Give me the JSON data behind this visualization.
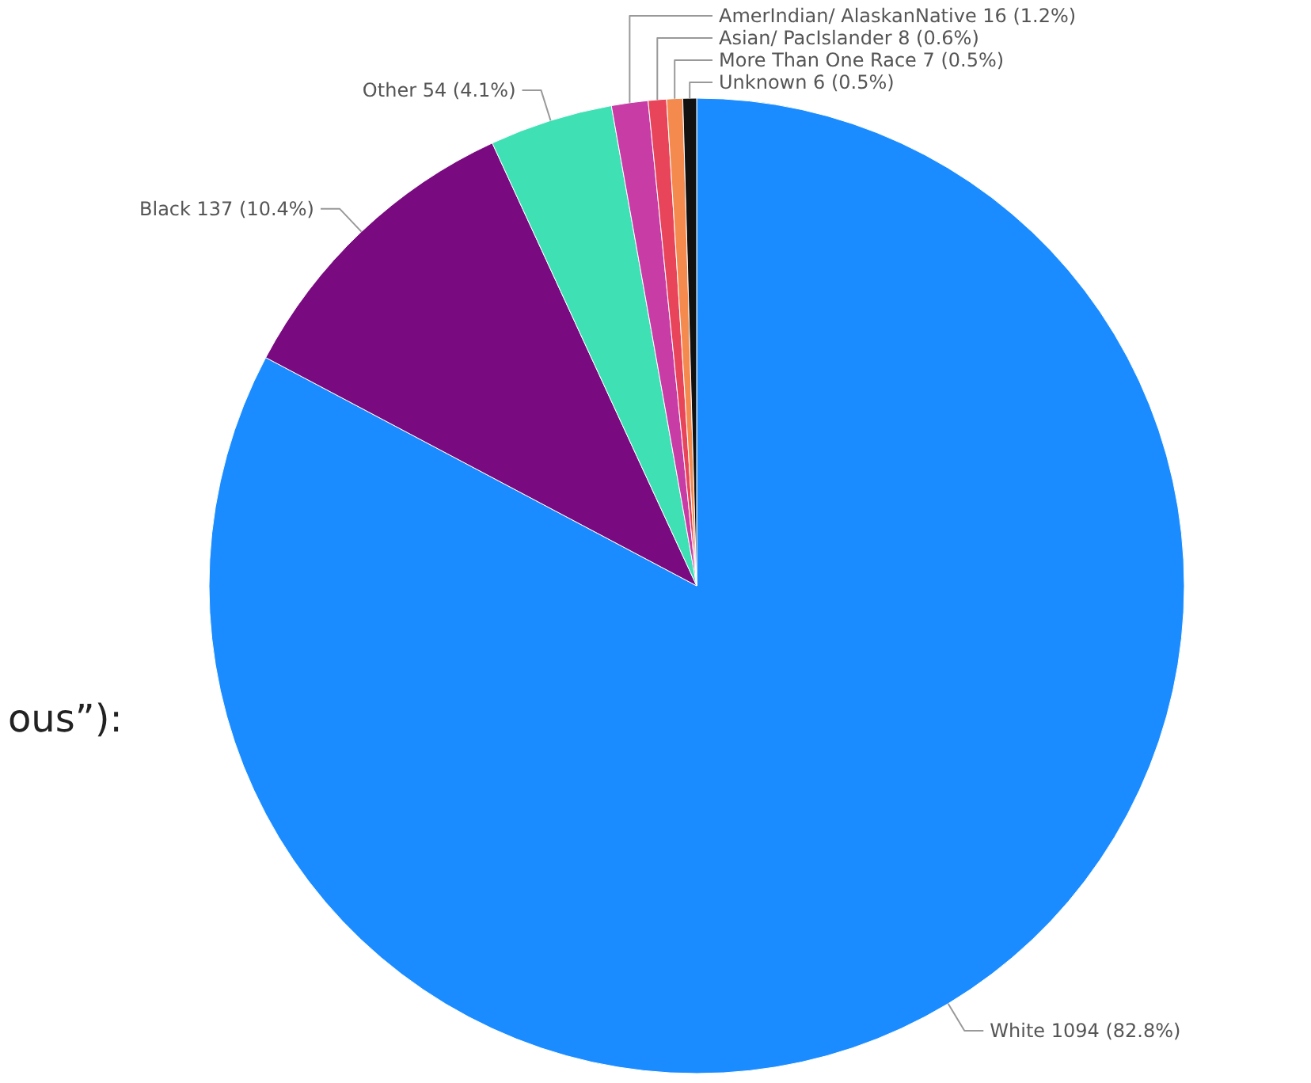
{
  "chart_data": {
    "type": "pie",
    "categories": [
      "White",
      "Black",
      "Other",
      "AmerIndian/ AlaskanNative",
      "Asian/ PacIslander",
      "More Than One Race",
      "Unknown"
    ],
    "values": [
      1094,
      137,
      54,
      16,
      8,
      7,
      6
    ],
    "colors": [
      "#1a8cff",
      "#7a0a80",
      "#3ee0b4",
      "#c83ca6",
      "#e8455a",
      "#f58a4e",
      "#111111"
    ],
    "value_labels": [
      "1094 (82.8%)",
      "137 (10.4%)",
      "54 (4.1%)",
      "16 (1.2%)",
      "8 (0.6%)",
      "7 (0.5%)",
      "6 (0.5%)"
    ],
    "annotations": [
      "ous”):"
    ]
  }
}
